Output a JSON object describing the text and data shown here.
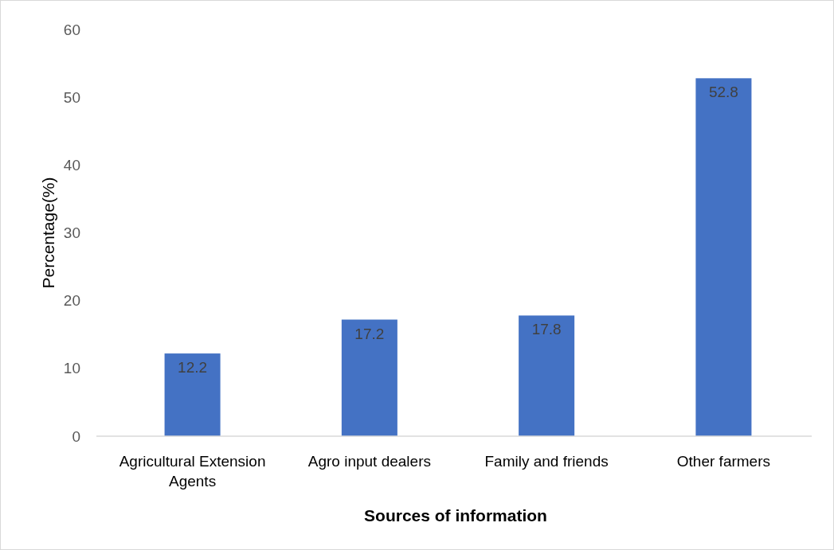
{
  "chart_data": {
    "type": "bar",
    "xlabel": "Sources of information",
    "ylabel": "Percentage(%)",
    "categories": [
      "Agricultural Extension Agents",
      "Agro input dealers",
      "Family and friends",
      "Other farmers"
    ],
    "values": [
      12.2,
      17.2,
      17.8,
      52.8
    ],
    "color": "#4472c4",
    "ylim": [
      0,
      60
    ],
    "yticks": [
      0,
      10,
      20,
      30,
      40,
      50,
      60
    ],
    "grid": false,
    "data_labels": true
  }
}
